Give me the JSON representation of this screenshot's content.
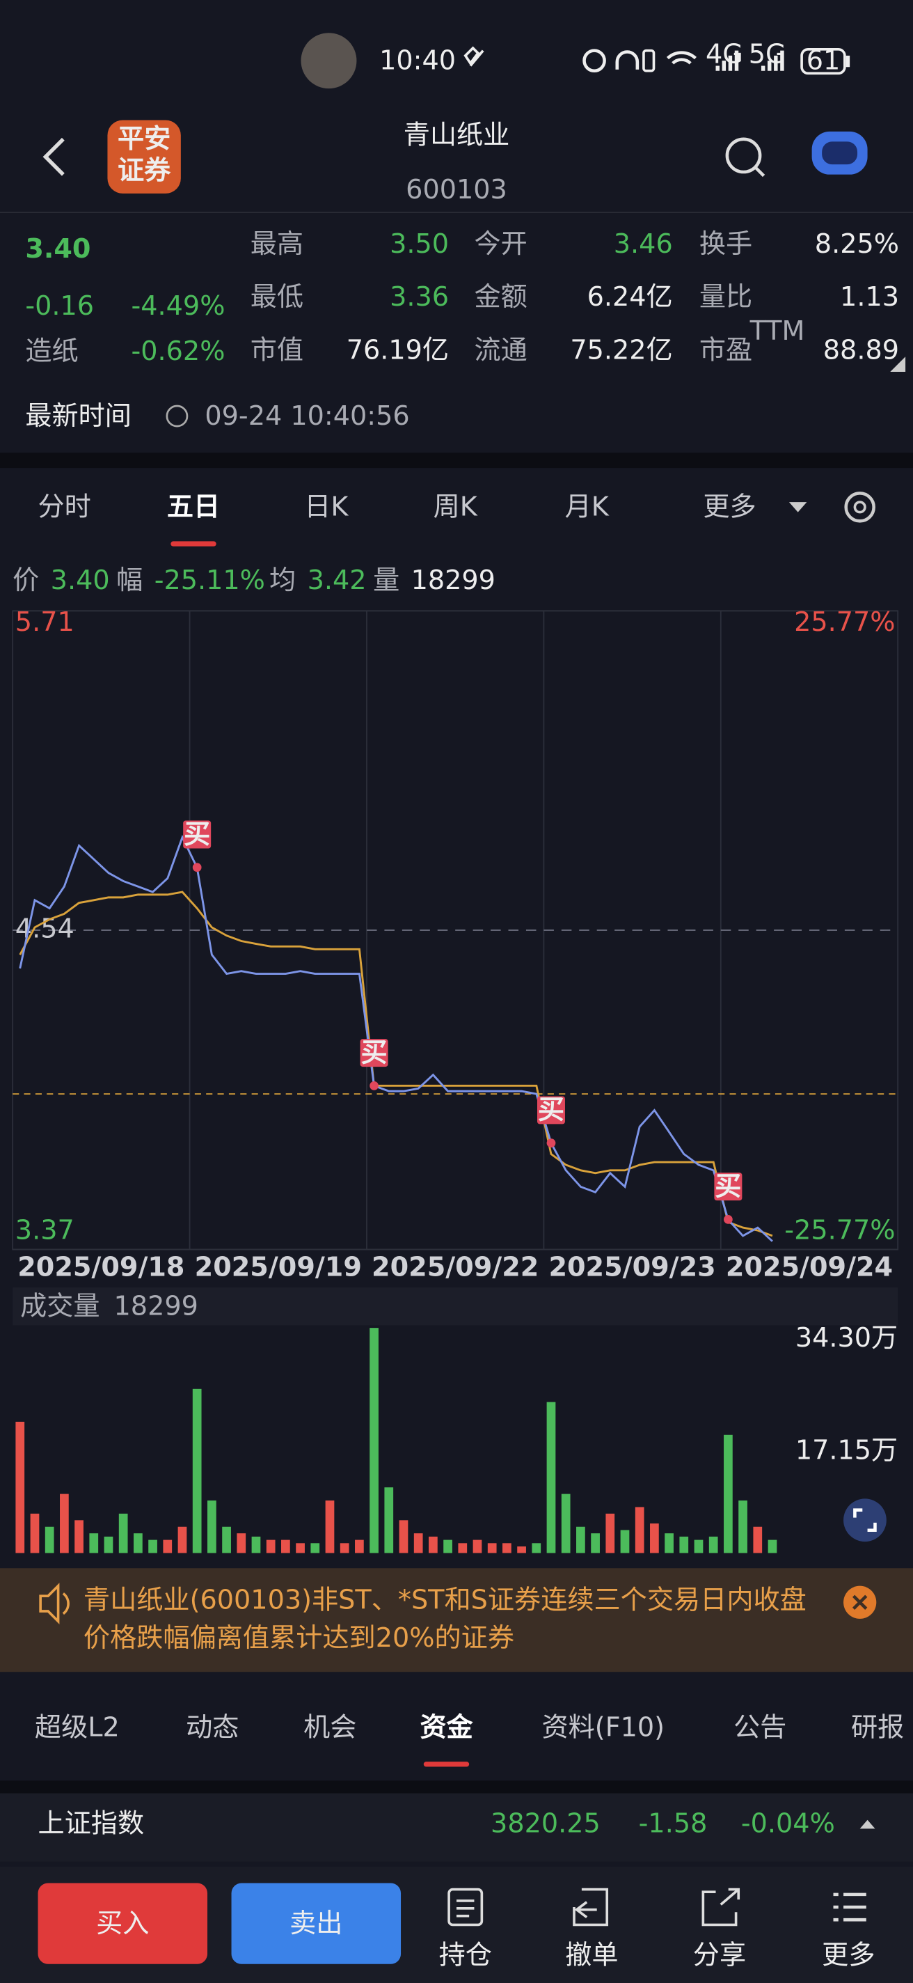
{
  "status_bar": {
    "time": "10:40",
    "network": [
      "4G",
      "5G"
    ],
    "battery": "61"
  },
  "header": {
    "logo": [
      "平安",
      "证券"
    ],
    "title": "青山纸业",
    "code": "600103"
  },
  "quote": {
    "price": "3.40",
    "change": "-0.16",
    "change_pct": "-4.49%",
    "sector": "造纸",
    "sector_pct": "-0.62%",
    "stats": [
      [
        {
          "label": "最高",
          "value": "3.50",
          "color": "#4cbb5b"
        },
        {
          "label": "今开",
          "value": "3.46",
          "color": "#4cbb5b"
        },
        {
          "label": "换手",
          "value": "8.25%",
          "color": "#eeeeee"
        }
      ],
      [
        {
          "label": "最低",
          "value": "3.36",
          "color": "#4cbb5b"
        },
        {
          "label": "金额",
          "value": "6.24亿",
          "color": "#eeeeee"
        },
        {
          "label": "量比",
          "value": "1.13",
          "color": "#eeeeee"
        }
      ],
      [
        {
          "label": "市值",
          "value": "76.19亿",
          "color": "#eeeeee"
        },
        {
          "label": "流通",
          "value": "75.22亿",
          "color": "#eeeeee"
        },
        {
          "label": "市盈",
          "value": "88.89",
          "color": "#eeeeee",
          "badge": "TTM"
        }
      ]
    ],
    "time_label": "最新时间",
    "time": "09-24 10:40:56"
  },
  "tabs": {
    "items": [
      "分时",
      "五日",
      "日K",
      "周K",
      "月K",
      "更多"
    ],
    "active": 1
  },
  "info": [
    {
      "label": "价",
      "value": "3.40",
      "color": "#4cbb5b"
    },
    {
      "label": "幅",
      "value": "-25.11%",
      "color": "#4cbb5b"
    },
    {
      "label": "均",
      "value": "3.42",
      "color": "#4cbb5b"
    },
    {
      "label": "量",
      "value": "18299",
      "color": "#eeeeee"
    }
  ],
  "chart": {
    "type": "line",
    "ylim": [
      3.37,
      5.71
    ],
    "yticks": [
      5.71,
      4.54,
      3.37
    ],
    "y2lim": [
      -25.77,
      25.77
    ],
    "y2ticks": [
      {
        "value": 25.77,
        "label": "25.77%"
      },
      {
        "value": -25.77,
        "label": "-25.77%"
      }
    ],
    "dates": [
      "2025/09/18",
      "2025/09/19",
      "2025/09/22",
      "2025/09/23",
      "2025/09/24"
    ],
    "close_line": 3.94,
    "price": {
      "color": "#7d95e8",
      "values": [
        4.4,
        4.65,
        4.62,
        4.7,
        4.85,
        4.8,
        4.75,
        4.72,
        4.7,
        4.68,
        4.73,
        4.88,
        4.77,
        4.45,
        4.38,
        4.39,
        4.38,
        4.38,
        4.38,
        4.39,
        4.38,
        4.38,
        4.38,
        4.38,
        3.97,
        3.95,
        3.95,
        3.96,
        4.01,
        3.95,
        3.95,
        3.95,
        3.95,
        3.95,
        3.95,
        3.94,
        3.76,
        3.66,
        3.6,
        3.58,
        3.65,
        3.6,
        3.82,
        3.88,
        3.8,
        3.72,
        3.68,
        3.66,
        3.48,
        3.42,
        3.45,
        3.4,
        null,
        null,
        null,
        null,
        null,
        null,
        null,
        null
      ]
    },
    "average": {
      "color": "#d9a23b",
      "values": [
        4.45,
        4.55,
        4.58,
        4.6,
        4.64,
        4.65,
        4.66,
        4.66,
        4.67,
        4.67,
        4.67,
        4.68,
        4.62,
        4.55,
        4.52,
        4.5,
        4.49,
        4.48,
        4.48,
        4.48,
        4.47,
        4.47,
        4.47,
        4.47,
        3.97,
        3.97,
        3.97,
        3.97,
        3.97,
        3.97,
        3.97,
        3.97,
        3.97,
        3.97,
        3.97,
        3.97,
        3.72,
        3.68,
        3.66,
        3.65,
        3.66,
        3.66,
        3.68,
        3.69,
        3.69,
        3.69,
        3.69,
        3.69,
        3.47,
        3.45,
        3.44,
        3.42,
        null,
        null,
        null,
        null,
        null,
        null,
        null,
        null
      ]
    },
    "buy": {
      "name": "买",
      "color": "#e0475c",
      "values": [
        null,
        null,
        null,
        null,
        null,
        null,
        null,
        null,
        null,
        null,
        null,
        null,
        4.77,
        null,
        null,
        null,
        null,
        null,
        null,
        null,
        null,
        null,
        null,
        null,
        3.97,
        null,
        null,
        null,
        null,
        null,
        null,
        null,
        null,
        null,
        null,
        null,
        3.76,
        null,
        null,
        null,
        null,
        null,
        null,
        null,
        null,
        null,
        null,
        null,
        3.48,
        null,
        null,
        null,
        null,
        null,
        null,
        null,
        null,
        null,
        null,
        null
      ]
    },
    "volume": {
      "title": "成交量",
      "last": "18299",
      "ylim": [
        0,
        343000
      ],
      "yticks": [
        {
          "value": 343000,
          "label": "34.30万"
        },
        {
          "value": 171500,
          "label": "17.15万"
        }
      ],
      "up_color": "#e8524a",
      "down_color": "#4cbb5b",
      "values": [
        200000,
        60000,
        40000,
        90000,
        50000,
        30000,
        25000,
        60000,
        30000,
        20000,
        20000,
        40000,
        250000,
        80000,
        40000,
        30000,
        25000,
        20000,
        20000,
        15000,
        15000,
        80000,
        15000,
        20000,
        343000,
        100000,
        50000,
        30000,
        25000,
        20000,
        15000,
        20000,
        15000,
        15000,
        10000,
        15000,
        230000,
        90000,
        40000,
        30000,
        60000,
        35000,
        70000,
        45000,
        30000,
        25000,
        20000,
        25000,
        180000,
        80000,
        40000,
        20000,
        null,
        null,
        null,
        null,
        null,
        null,
        null,
        null
      ]
    }
  },
  "notice": "青山纸业(600103)非ST、*ST和S证券连续三个交易日内收盘价格跌幅偏离值累计达到20%的证券",
  "section_tabs": {
    "items": [
      "超级L2",
      "动态",
      "机会",
      "资金",
      "资料(F10)",
      "公告",
      "研报"
    ],
    "active": 3
  },
  "index": {
    "name": "上证指数",
    "value": "3820.25",
    "change": "-1.58",
    "change_pct": "-0.04%"
  },
  "bottom_bar": {
    "buy": "买入",
    "sell": "卖出",
    "items": [
      "持仓",
      "撤单",
      "分享",
      "更多"
    ]
  }
}
